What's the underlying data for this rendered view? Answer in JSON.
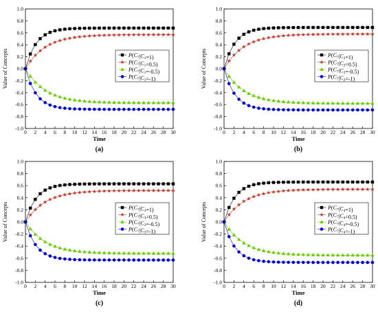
{
  "figure": {
    "colors": {
      "p_pos1": "#000000",
      "p_pos05": "#c0392b",
      "p_neg05": "#66cc00",
      "p_neg1": "#0000cc",
      "legend_border": "#000000"
    },
    "markers": {
      "p_pos1": "square",
      "p_pos05": "star",
      "p_neg05": "triangle",
      "p_neg1": "circle"
    }
  },
  "chart_data": [
    {
      "panel_label": "(a)",
      "type": "line",
      "xlabel": "Time",
      "ylabel": "Value of Concepts",
      "xlim": [
        0,
        30
      ],
      "ylim": [
        -1.0,
        1.0
      ],
      "xticks": [
        "0",
        "2",
        "4",
        "6",
        "8",
        "10",
        "12",
        "14",
        "16",
        "18",
        "20",
        "22",
        "24",
        "26",
        "28",
        "30"
      ],
      "yticks": [
        "-1.0",
        "-0.8",
        "-0.6",
        "-0.4",
        "-0.2",
        "0.0",
        "0.2",
        "0.4",
        "0.6",
        "0.8",
        "1.0"
      ],
      "grid": false,
      "legend_position": "center-right",
      "series": [
        {
          "name": "P(C7|C1=1)",
          "legend": {
            "c": "C",
            "target": "7",
            "src": "1",
            "val": "=1"
          },
          "start": 0.0,
          "plateau": 0.68,
          "rate": 0.45
        },
        {
          "name": "P(C7|C1=0.5)",
          "legend": {
            "c": "C",
            "target": "7",
            "src": "1",
            "val": "=0.5"
          },
          "start": 0.0,
          "plateau": 0.57,
          "rate": 0.25
        },
        {
          "name": "P(C7|C1=-0.5)",
          "legend": {
            "c": "C",
            "target": "7",
            "src": "1",
            "val": "=-0.5"
          },
          "start": 0.0,
          "plateau": -0.57,
          "rate": 0.25
        },
        {
          "name": "P(C7|C1=-1)",
          "legend": {
            "c": "C",
            "target": "7",
            "src": "1",
            "val": "=-1"
          },
          "start": 0.0,
          "plateau": -0.68,
          "rate": 0.45
        }
      ]
    },
    {
      "panel_label": "(b)",
      "type": "line",
      "xlabel": "Time",
      "ylabel": "Value of Concepts",
      "xlim": [
        0,
        30
      ],
      "ylim": [
        -1.0,
        1.0
      ],
      "xticks": [
        "0",
        "2",
        "4",
        "6",
        "8",
        "10",
        "12",
        "14",
        "16",
        "18",
        "20",
        "22",
        "24",
        "26",
        "28",
        "30"
      ],
      "yticks": [
        "-1.0",
        "-0.8",
        "-0.6",
        "-0.4",
        "-0.2",
        "0.0",
        "0.2",
        "0.4",
        "0.6",
        "0.8",
        "1.0"
      ],
      "grid": false,
      "legend_position": "center-right",
      "series": [
        {
          "name": "P(C7|C2=1)",
          "legend": {
            "c": "C",
            "target": "7",
            "src": "2",
            "val": "=1"
          },
          "start": 0.0,
          "plateau": 0.69,
          "rate": 0.45
        },
        {
          "name": "P(C7|C2=0.5)",
          "legend": {
            "c": "C",
            "target": "7",
            "src": "2",
            "val": "=0.5"
          },
          "start": 0.0,
          "plateau": 0.58,
          "rate": 0.25
        },
        {
          "name": "P(C7|C2=-0.5)",
          "legend": {
            "c": "C",
            "target": "7",
            "src": "2",
            "val": "=-0.5"
          },
          "start": 0.0,
          "plateau": -0.58,
          "rate": 0.25
        },
        {
          "name": "P(C7|C2=-1)",
          "legend": {
            "c": "C",
            "target": "7",
            "src": "2",
            "val": "=-1"
          },
          "start": 0.0,
          "plateau": -0.69,
          "rate": 0.45
        }
      ]
    },
    {
      "panel_label": "(c)",
      "type": "line",
      "xlabel": "Time",
      "ylabel": "Value of Concepts",
      "xlim": [
        0,
        30
      ],
      "ylim": [
        -1.0,
        1.0
      ],
      "xticks": [
        "0",
        "2",
        "4",
        "6",
        "8",
        "10",
        "12",
        "14",
        "16",
        "18",
        "20",
        "22",
        "24",
        "26",
        "28",
        "30"
      ],
      "yticks": [
        "-1.0",
        "-0.8",
        "-0.6",
        "-0.4",
        "-0.2",
        "0.0",
        "0.2",
        "0.4",
        "0.6",
        "0.8",
        "1.0"
      ],
      "grid": false,
      "legend_position": "center-right",
      "series": [
        {
          "name": "P(C7|C3=1)",
          "legend": {
            "c": "C",
            "target": "7",
            "src": "3",
            "val": "=1"
          },
          "start": 0.0,
          "plateau": 0.63,
          "rate": 0.45
        },
        {
          "name": "P(C7|C3=0.5)",
          "legend": {
            "c": "C",
            "target": "7",
            "src": "3",
            "val": "=0.5"
          },
          "start": 0.0,
          "plateau": 0.52,
          "rate": 0.25
        },
        {
          "name": "P(C7|C3=-0.5)",
          "legend": {
            "c": "C",
            "target": "7",
            "src": "3",
            "val": "=-0.5"
          },
          "start": 0.0,
          "plateau": -0.52,
          "rate": 0.25
        },
        {
          "name": "P(C7|C3=-1)",
          "legend": {
            "c": "C",
            "target": "7",
            "src": "3",
            "val": "=-1"
          },
          "start": 0.0,
          "plateau": -0.63,
          "rate": 0.45
        }
      ]
    },
    {
      "panel_label": "(d)",
      "type": "line",
      "xlabel": "Time",
      "ylabel": "Value of Concepts",
      "xlim": [
        0,
        30
      ],
      "ylim": [
        -1.0,
        1.0
      ],
      "xticks": [
        "0",
        "2",
        "4",
        "6",
        "8",
        "10",
        "12",
        "14",
        "16",
        "18",
        "20",
        "22",
        "24",
        "26",
        "28",
        "30"
      ],
      "yticks": [
        "-1.0",
        "-0.8",
        "-0.6",
        "-0.4",
        "-0.2",
        "0.0",
        "0.2",
        "0.4",
        "0.6",
        "0.8",
        "1.0"
      ],
      "grid": false,
      "legend_position": "center-right",
      "series": [
        {
          "name": "P(C7|C4=1)",
          "legend": {
            "c": "C",
            "target": "7",
            "src": "4",
            "val": "=1"
          },
          "start": 0.0,
          "plateau": 0.66,
          "rate": 0.45
        },
        {
          "name": "P(C7|C4=0.5)",
          "legend": {
            "c": "C",
            "target": "7",
            "src": "4",
            "val": "=0.5"
          },
          "start": 0.0,
          "plateau": 0.54,
          "rate": 0.25
        },
        {
          "name": "P(C7|C4=-0.5)",
          "legend": {
            "c": "C",
            "target": "7",
            "src": "4",
            "val": "=-0.5"
          },
          "start": 0.0,
          "plateau": -0.55,
          "rate": 0.25
        },
        {
          "name": "P(C7|C4=-1)",
          "legend": {
            "c": "C",
            "target": "7",
            "src": "4",
            "val": "=-1"
          },
          "start": 0.0,
          "plateau": -0.67,
          "rate": 0.45
        }
      ]
    }
  ]
}
